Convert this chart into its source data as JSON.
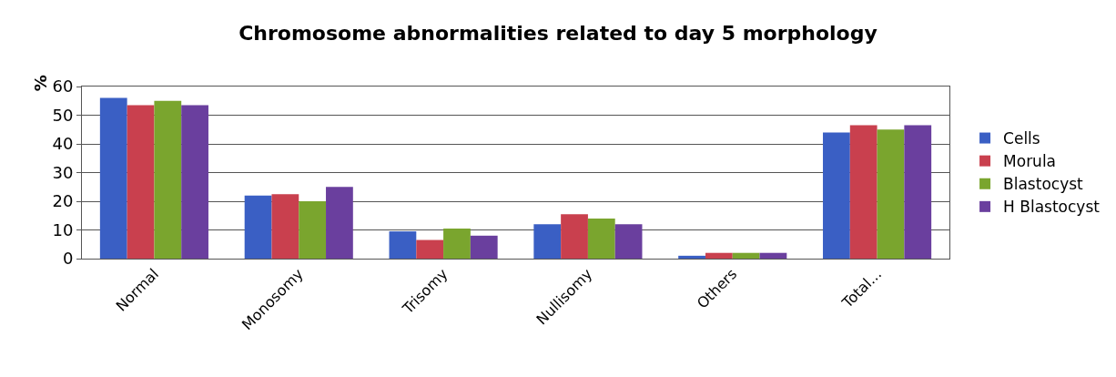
{
  "chart_data": {
    "type": "bar",
    "title": "Chromosome abnormalities related to day 5 morphology",
    "ylabel": "%",
    "categories": [
      "Normal",
      "Monosomy",
      "Trisomy",
      "Nullisomy",
      "Others",
      "Total..."
    ],
    "series": [
      {
        "name": "Cells",
        "color": "#3a5fc4",
        "values": [
          56,
          22,
          9.5,
          12,
          1,
          44
        ]
      },
      {
        "name": "Morula",
        "color": "#c9404e",
        "values": [
          53.5,
          22.5,
          6.5,
          15.5,
          2,
          46.5
        ]
      },
      {
        "name": "Blastocyst",
        "color": "#7aa52e",
        "values": [
          55,
          20,
          10.5,
          14,
          2,
          45
        ]
      },
      {
        "name": "H Blastocyst",
        "color": "#6a3f9e",
        "values": [
          53.5,
          25,
          8,
          12,
          2,
          46.5
        ]
      }
    ],
    "ylim": [
      0,
      60
    ],
    "yticks": [
      0,
      10,
      20,
      30,
      40,
      50,
      60
    ],
    "grid": "y",
    "legend": "right"
  }
}
